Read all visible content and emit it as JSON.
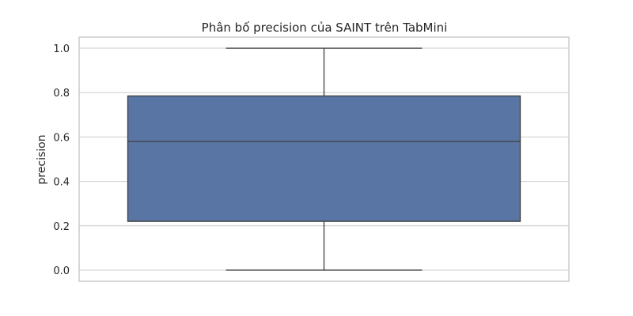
{
  "chart_data": {
    "type": "box",
    "title": "Phân bố precision của SAINT trên TabMini",
    "xlabel": "",
    "ylabel": "precision",
    "ylim": [
      -0.05,
      1.05
    ],
    "yticks": [
      0.0,
      0.2,
      0.4,
      0.6,
      0.8,
      1.0
    ],
    "ytick_labels": [
      "0.0",
      "0.2",
      "0.4",
      "0.6",
      "0.8",
      "1.0"
    ],
    "grid": "horizontal",
    "series": [
      {
        "min": 0.0,
        "q1": 0.22,
        "median": 0.58,
        "q3": 0.785,
        "max": 1.0
      }
    ],
    "colors": {
      "box_fill": "#5975a4",
      "line": "#3d3d3d",
      "grid": "#cccccc",
      "frame": "#cccccc"
    }
  }
}
